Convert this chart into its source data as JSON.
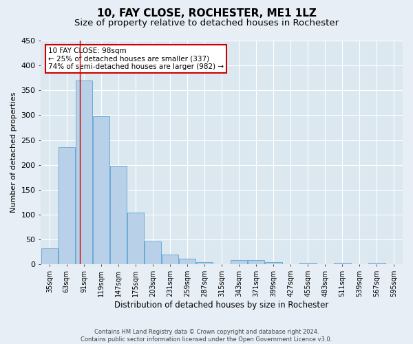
{
  "title": "10, FAY CLOSE, ROCHESTER, ME1 1LZ",
  "subtitle": "Size of property relative to detached houses in Rochester",
  "xlabel": "Distribution of detached houses by size in Rochester",
  "ylabel": "Number of detached properties",
  "footer_line1": "Contains HM Land Registry data © Crown copyright and database right 2024.",
  "footer_line2": "Contains public sector information licensed under the Open Government Licence v3.0.",
  "bar_edges": [
    35,
    63,
    91,
    119,
    147,
    175,
    203,
    231,
    259,
    287,
    315,
    343,
    371,
    399,
    427,
    455,
    483,
    511,
    539,
    567,
    595
  ],
  "bar_heights": [
    33,
    235,
    370,
    298,
    198,
    104,
    46,
    20,
    12,
    5,
    0,
    9,
    9,
    5,
    0,
    3,
    0,
    3,
    0,
    4,
    0
  ],
  "bar_color": "#b8d0e8",
  "bar_edge_color": "#6aaad4",
  "vline_x": 98,
  "vline_color": "#cc0000",
  "annotation_text": "10 FAY CLOSE: 98sqm\n← 25% of detached houses are smaller (337)\n74% of semi-detached houses are larger (982) →",
  "annotation_box_color": "#ffffff",
  "annotation_box_edge": "#cc0000",
  "ylim": [
    0,
    450
  ],
  "yticks": [
    0,
    50,
    100,
    150,
    200,
    250,
    300,
    350,
    400,
    450
  ],
  "bg_color": "#e8eef5",
  "plot_bg_color": "#dce8f0",
  "grid_color": "#ffffff",
  "title_fontsize": 11,
  "subtitle_fontsize": 9.5,
  "tick_label_fontsize": 7,
  "ylabel_fontsize": 8,
  "xlabel_fontsize": 8.5
}
